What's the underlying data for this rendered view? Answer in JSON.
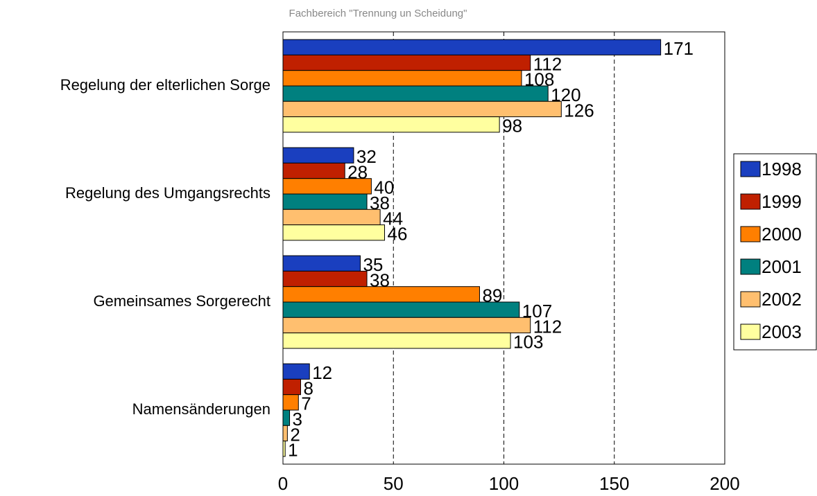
{
  "chart_data": {
    "type": "bar",
    "orientation": "horizontal",
    "title": "Fachbereich \"Trennung un Scheidung\"",
    "categories": [
      "Regelung der elterlichen Sorge",
      "Regelung des Umgangsrechts",
      "Gemeinsames Sorgerecht",
      "Namensänderungen"
    ],
    "series": [
      {
        "name": "1998",
        "color": "#1a3fbf",
        "values": [
          171,
          32,
          35,
          12
        ]
      },
      {
        "name": "1999",
        "color": "#c02000",
        "values": [
          112,
          28,
          38,
          8
        ]
      },
      {
        "name": "2000",
        "color": "#ff7f00",
        "values": [
          108,
          40,
          89,
          7
        ]
      },
      {
        "name": "2001",
        "color": "#00807f",
        "values": [
          120,
          38,
          107,
          3
        ]
      },
      {
        "name": "2002",
        "color": "#ffbf6f",
        "values": [
          126,
          44,
          112,
          2
        ]
      },
      {
        "name": "2003",
        "color": "#ffff9f",
        "values": [
          98,
          46,
          103,
          1
        ]
      }
    ],
    "xlim": [
      0,
      200
    ],
    "xticks": [
      0,
      50,
      100,
      150,
      200
    ],
    "grid": true,
    "legend": "right"
  }
}
